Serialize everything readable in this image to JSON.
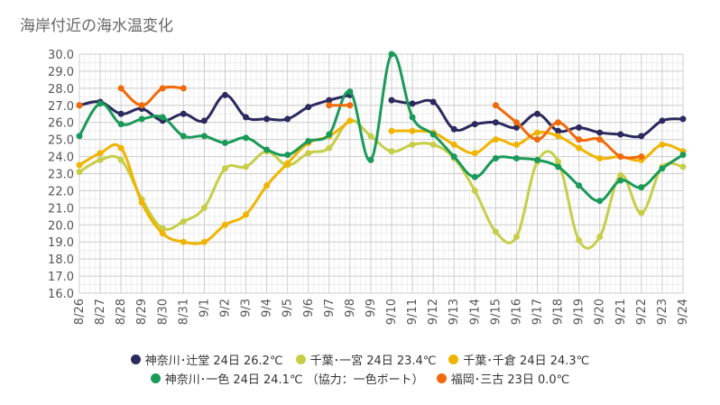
{
  "chart_data": {
    "type": "line",
    "title": "海岸付近の海水温変化",
    "xlabel": "",
    "ylabel": "",
    "ylim": [
      16.0,
      30.0
    ],
    "y_ticks": [
      "16.0",
      "17.0",
      "18.0",
      "19.0",
      "20.0",
      "21.0",
      "22.0",
      "23.0",
      "24.0",
      "25.0",
      "26.0",
      "27.0",
      "28.0",
      "29.0",
      "30.0"
    ],
    "categories": [
      "8/26",
      "8/27",
      "8/28",
      "8/29",
      "8/30",
      "8/31",
      "9/1",
      "9/2",
      "9/3",
      "9/4",
      "9/5",
      "9/6",
      "9/7",
      "9/8",
      "9/9",
      "9/10",
      "9/11",
      "9/12",
      "9/13",
      "9/14",
      "9/15",
      "9/16",
      "9/17",
      "9/18",
      "9/19",
      "9/20",
      "9/21",
      "9/22",
      "9/23",
      "9/24"
    ],
    "grid": true,
    "legend_position": "bottom",
    "series": [
      {
        "name": "神奈川･辻堂 24日 26.2℃",
        "color": "#2b2a5e",
        "values": [
          27.0,
          27.2,
          26.5,
          26.8,
          26.1,
          26.5,
          26.1,
          27.6,
          26.3,
          26.2,
          26.2,
          26.9,
          27.3,
          27.6,
          null,
          27.3,
          27.1,
          27.2,
          25.6,
          25.9,
          26.0,
          25.7,
          26.5,
          25.5,
          25.7,
          25.4,
          25.3,
          25.2,
          26.1,
          26.2
        ]
      },
      {
        "name": "千葉･一宮 24日 23.4℃",
        "color": "#c6ce48",
        "values": [
          23.1,
          23.8,
          23.8,
          21.5,
          19.8,
          20.2,
          21.0,
          23.3,
          23.4,
          24.3,
          23.5,
          24.2,
          24.5,
          26.1,
          25.2,
          24.3,
          24.7,
          24.7,
          23.9,
          22.0,
          19.6,
          19.3,
          23.7,
          23.7,
          19.1,
          19.3,
          22.9,
          20.7,
          23.4,
          23.4
        ]
      },
      {
        "name": "千葉･千倉 24日 24.3℃",
        "color": "#f0b400",
        "values": [
          23.5,
          24.2,
          24.5,
          21.3,
          19.5,
          19.0,
          19.0,
          20.0,
          20.6,
          22.3,
          23.6,
          24.8,
          25.2,
          26.1,
          null,
          25.5,
          25.5,
          25.4,
          24.7,
          24.2,
          25.0,
          24.7,
          25.4,
          25.2,
          24.5,
          23.9,
          24.0,
          23.8,
          24.7,
          24.3
        ]
      },
      {
        "name": "神奈川･一色 24日 24.1℃ （協力：一色ボート）",
        "color": "#1a9a58",
        "values": [
          25.2,
          27.1,
          25.9,
          26.2,
          26.3,
          25.2,
          25.2,
          24.8,
          25.1,
          24.4,
          24.1,
          24.9,
          25.3,
          27.8,
          23.8,
          30.0,
          26.3,
          25.3,
          24.0,
          22.8,
          23.9,
          23.9,
          23.8,
          23.4,
          22.3,
          21.4,
          22.6,
          22.2,
          23.3,
          24.1
        ]
      },
      {
        "name": "福岡･三古 23日 0.0℃",
        "color": "#f06a0a",
        "values": [
          27.0,
          null,
          28.0,
          27.0,
          28.0,
          28.0,
          null,
          null,
          null,
          null,
          null,
          null,
          27.0,
          27.0,
          null,
          null,
          null,
          null,
          null,
          null,
          27.0,
          26.0,
          25.0,
          26.0,
          25.0,
          25.0,
          24.0,
          24.0,
          null,
          null
        ]
      }
    ]
  }
}
